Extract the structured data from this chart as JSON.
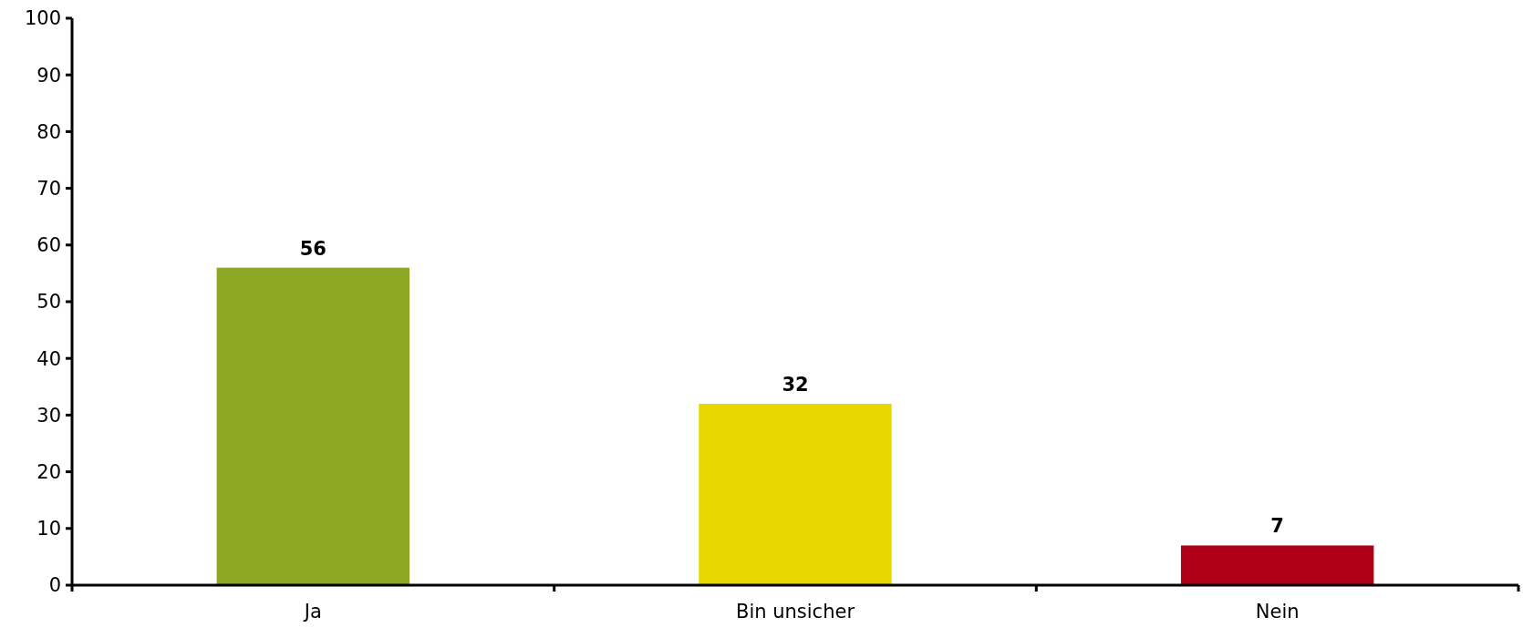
{
  "chart_data": {
    "type": "bar",
    "categories": [
      "Ja",
      "Bin unsicher",
      "Nein"
    ],
    "values": [
      56,
      32,
      7
    ],
    "colors": [
      "#8ea826",
      "#e8d800",
      "#b00018"
    ],
    "ylim": [
      0,
      100
    ],
    "yticks": [
      0,
      10,
      20,
      30,
      40,
      50,
      60,
      70,
      80,
      90,
      100
    ],
    "grid": false,
    "data_labels": true
  }
}
